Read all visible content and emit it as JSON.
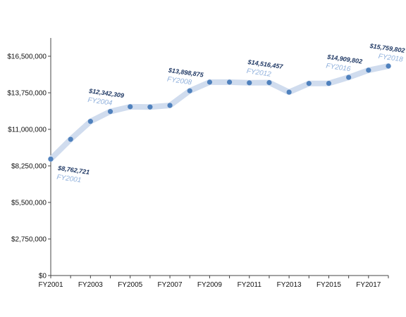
{
  "chart_data": {
    "type": "line",
    "title": "",
    "xlabel": "",
    "ylabel": "",
    "ylim": [
      0,
      17875000
    ],
    "y_ticks": [
      "$0",
      "$2,750,000",
      "$5,500,000",
      "$8,250,000",
      "$11,000,000",
      "$13,750,000",
      "$16,500,000"
    ],
    "y_tick_values": [
      0,
      2750000,
      5500000,
      8250000,
      11000000,
      13750000,
      16500000
    ],
    "x": [
      "FY2001",
      "FY2002",
      "FY2003",
      "FY2004",
      "FY2005",
      "FY2006",
      "FY2007",
      "FY2008",
      "FY2009",
      "FY2010",
      "FY2011",
      "FY2012",
      "FY2013",
      "FY2014",
      "FY2015",
      "FY2016",
      "FY2017",
      "FY2018"
    ],
    "x_tick_labels": [
      "FY2001",
      "FY2003",
      "FY2005",
      "FY2007",
      "FY2009",
      "FY2011",
      "FY2013",
      "FY2015",
      "FY2017"
    ],
    "grid": false,
    "series": [
      {
        "values": [
          8762721,
          10250000,
          11600000,
          12342309,
          12700000,
          12680000,
          12800000,
          13898875,
          14550000,
          14550000,
          14500000,
          14516457,
          13800000,
          14450000,
          14460000,
          14909802,
          15450000,
          15759802
        ],
        "line_color": "#d0dcee",
        "marker_color": "#4f81bd"
      }
    ],
    "annotations": [
      {
        "index": 0,
        "value_label": "$8,762,721",
        "year_label": "FY2001",
        "placement": "below"
      },
      {
        "index": 3,
        "value_label": "$12,342,309",
        "year_label": "FY2004",
        "placement": "above"
      },
      {
        "index": 7,
        "value_label": "$13,898,875",
        "year_label": "FY2008",
        "placement": "above"
      },
      {
        "index": 11,
        "value_label": "$14,516,457",
        "year_label": "FY2012",
        "placement": "above"
      },
      {
        "index": 15,
        "value_label": "$14,909,802",
        "year_label": "FY2016",
        "placement": "above"
      },
      {
        "index": 17,
        "value_label": "$15,759,802",
        "year_label": "FY2018",
        "placement": "above"
      }
    ],
    "colors": {
      "axis": "#444444",
      "annotation_value": "#1f3864",
      "annotation_year": "#8fb0dc"
    }
  }
}
